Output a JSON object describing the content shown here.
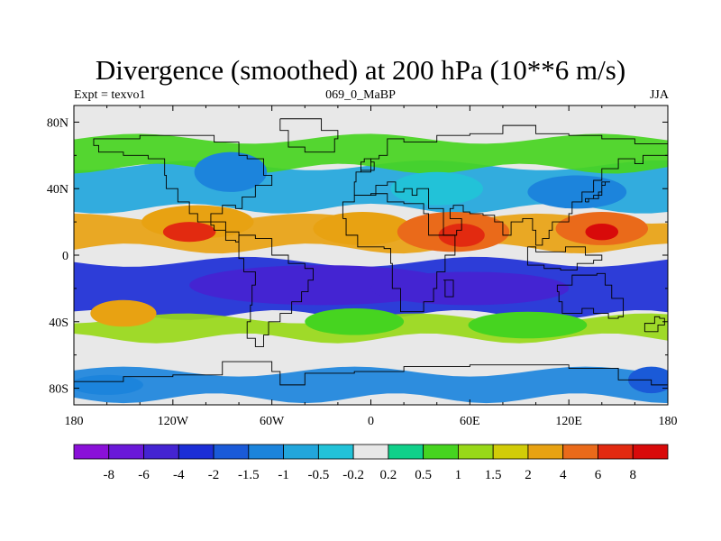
{
  "chart_data": {
    "type": "heatmap",
    "title": "Divergence (smoothed) at 200 hPa (10**6 m/s)",
    "left_label": "Expt = texvo1",
    "center_label": "069_0_MaBP",
    "right_label": "JJA",
    "x_ticks": [
      "180",
      "120W",
      "60W",
      "0",
      "60E",
      "120E",
      "180"
    ],
    "x_values": [
      -180,
      -120,
      -60,
      0,
      60,
      120,
      180
    ],
    "y_ticks": [
      "80N",
      "40N",
      "0",
      "40S",
      "80S"
    ],
    "y_values": [
      80,
      40,
      0,
      -40,
      -80
    ],
    "xlim": [
      -180,
      180
    ],
    "ylim": [
      -90,
      90
    ],
    "colorbar": {
      "labels": [
        "-8",
        "-6",
        "-4",
        "-2",
        "-1.5",
        "-1",
        "-0.5",
        "-0.2",
        "0.2",
        "0.5",
        "1",
        "1.5",
        "2",
        "4",
        "6",
        "8"
      ],
      "colors": [
        "#8a10d8",
        "#6a18d8",
        "#4424d2",
        "#1c2ed6",
        "#1a5ad8",
        "#1c84dc",
        "#22a6dc",
        "#22c2d8",
        "#e8e8e8",
        "#10d08a",
        "#46d420",
        "#98d818",
        "#d2cc08",
        "#e8a212",
        "#ea6a1a",
        "#e22a10",
        "#d80a0a"
      ]
    },
    "bands": [
      {
        "name": "north-cyan",
        "lat_top": 54,
        "lat_bot": 28,
        "color": "#22a6dc",
        "level": "-1"
      },
      {
        "name": "north-green",
        "lat_top": 70,
        "lat_bot": 52,
        "color": "#46d420",
        "level": "1"
      },
      {
        "name": "trop-orange",
        "lat_top": 22,
        "lat_bot": 4,
        "color": "#e8a212",
        "level": "4"
      },
      {
        "name": "eq-blue",
        "lat_top": -4,
        "lat_bot": -36,
        "color": "#1c2ed6",
        "level": "-2"
      },
      {
        "name": "south-yellow",
        "lat_top": -38,
        "lat_bot": -50,
        "color": "#98d818",
        "level": "1.5"
      },
      {
        "name": "south-blue",
        "lat_top": -70,
        "lat_bot": -86,
        "color": "#1c84dc",
        "level": "-1"
      }
    ],
    "blobs": [
      {
        "lon": -105,
        "lat": 20,
        "rx": 34,
        "ry": 10,
        "color": "#e8a212"
      },
      {
        "lon": -110,
        "lat": 14,
        "rx": 16,
        "ry": 6,
        "color": "#e22a10"
      },
      {
        "lon": -5,
        "lat": 16,
        "rx": 30,
        "ry": 10,
        "color": "#e8a212"
      },
      {
        "lon": 50,
        "lat": 14,
        "rx": 34,
        "ry": 12,
        "color": "#ea6a1a"
      },
      {
        "lon": 55,
        "lat": 12,
        "rx": 14,
        "ry": 7,
        "color": "#e22a10"
      },
      {
        "lon": 140,
        "lat": 16,
        "rx": 28,
        "ry": 10,
        "color": "#ea6a1a"
      },
      {
        "lon": 140,
        "lat": 14,
        "rx": 10,
        "ry": 5,
        "color": "#d80a0a"
      },
      {
        "lon": -30,
        "lat": -18,
        "rx": 80,
        "ry": 12,
        "color": "#4424d2"
      },
      {
        "lon": 60,
        "lat": -20,
        "rx": 60,
        "ry": 10,
        "color": "#4424d2"
      },
      {
        "lon": -85,
        "lat": 50,
        "rx": 22,
        "ry": 12,
        "color": "#1c84dc"
      },
      {
        "lon": 40,
        "lat": 40,
        "rx": 28,
        "ry": 10,
        "color": "#22c2d8"
      },
      {
        "lon": 125,
        "lat": 38,
        "rx": 30,
        "ry": 10,
        "color": "#1c84dc"
      },
      {
        "lon": -150,
        "lat": -35,
        "rx": 20,
        "ry": 8,
        "color": "#e8a212"
      },
      {
        "lon": -10,
        "lat": -40,
        "rx": 30,
        "ry": 8,
        "color": "#46d420"
      },
      {
        "lon": 95,
        "lat": -42,
        "rx": 36,
        "ry": 8,
        "color": "#46d420"
      },
      {
        "lon": 170,
        "lat": -75,
        "rx": 14,
        "ry": 8,
        "color": "#1a5ad8"
      },
      {
        "lon": -160,
        "lat": -78,
        "rx": 22,
        "ry": 6,
        "color": "#1c84dc"
      }
    ]
  }
}
